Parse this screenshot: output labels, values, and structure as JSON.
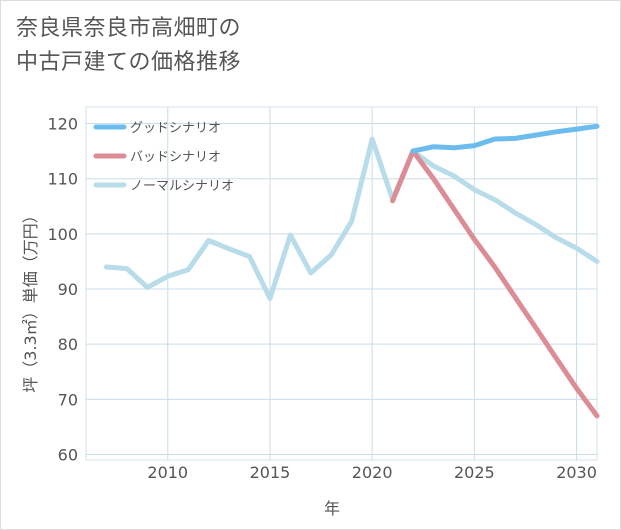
{
  "chart_data": {
    "type": "line",
    "title": [
      "奈良県奈良市高畑町の",
      "中古戸建ての価格推移"
    ],
    "xlabel": "年",
    "ylabel": "坪（3.3㎡）単価（万円）",
    "xlim": [
      2006,
      2031
    ],
    "ylim": [
      59,
      123
    ],
    "xticks": [
      2010,
      2015,
      2020,
      2025,
      2030
    ],
    "yticks": [
      60,
      70,
      80,
      90,
      100,
      110,
      120
    ],
    "grid": true,
    "legend_position": "top-left",
    "series": [
      {
        "name": "グッドシナリオ",
        "color": "#6cbcef",
        "x": [
          2022,
          2023,
          2024,
          2025,
          2026,
          2027,
          2028,
          2029,
          2030,
          2031
        ],
        "y": [
          115,
          115.8,
          115.6,
          116,
          117.2,
          117.3,
          117.9,
          118.5,
          119,
          119.5
        ]
      },
      {
        "name": "バッドシナリオ",
        "color": "#dc8c94",
        "x": [
          2021,
          2022,
          2023,
          2024,
          2025,
          2026,
          2027,
          2028,
          2029,
          2030,
          2031
        ],
        "y": [
          106,
          115,
          110,
          104.5,
          99,
          94,
          88.5,
          83,
          77.5,
          72,
          67
        ]
      },
      {
        "name": "ノーマルシナリオ",
        "color": "#b8dcea",
        "x": [
          2007,
          2008,
          2009,
          2010,
          2011,
          2012,
          2013,
          2014,
          2015,
          2016,
          2017,
          2018,
          2019,
          2020,
          2021,
          2022,
          2023,
          2024,
          2025,
          2026,
          2027,
          2028,
          2029,
          2030,
          2031
        ],
        "y": [
          94,
          93.7,
          90.3,
          92.3,
          93.5,
          98.8,
          97.3,
          95.9,
          88.3,
          99.8,
          92.9,
          96.2,
          102.3,
          117.2,
          106.2,
          115,
          112.3,
          110.5,
          108,
          106.2,
          103.8,
          101.7,
          99.3,
          97.4,
          95
        ]
      }
    ]
  }
}
